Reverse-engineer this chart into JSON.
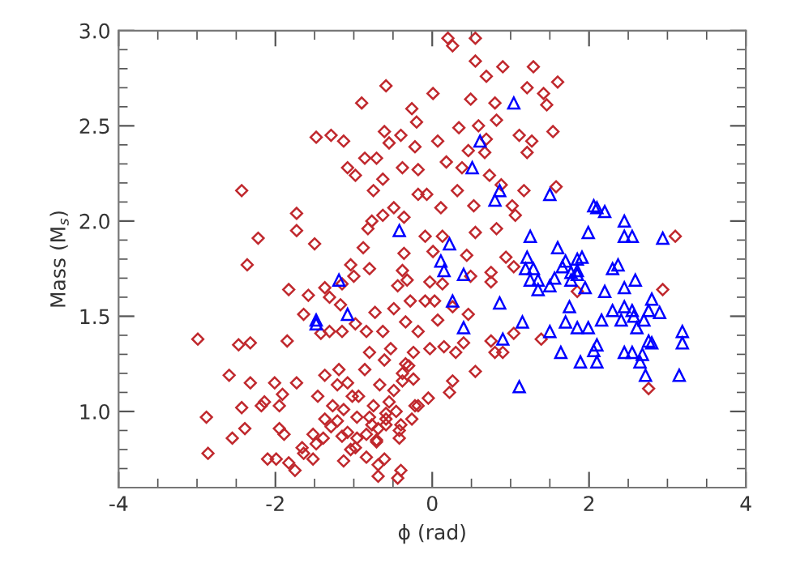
{
  "chart_data": {
    "type": "scatter",
    "xlabel": "ϕ (rad)",
    "ylabel": "Mass (M$_{s}$)",
    "xlim": [
      -4,
      4
    ],
    "ylim": [
      0.6,
      3.0
    ],
    "xticks": [
      -4,
      -2,
      0,
      2,
      4
    ],
    "yticks": [
      {
        "value": 1.0,
        "label": "1.0"
      },
      {
        "value": 1.5,
        "label": "1.5"
      },
      {
        "value": 2.0,
        "label": "2.0"
      },
      {
        "value": 2.5,
        "label": "2.5"
      },
      {
        "value": 3.0,
        "label": "3.0"
      }
    ],
    "grid": false,
    "legend": false,
    "series": [
      {
        "color": "#c0282d",
        "marker": "diamond",
        "x": [
          0.2,
          0.26,
          0.55,
          0.55,
          0.69,
          0.9,
          1.29,
          -0.59,
          0.01,
          0.49,
          1.21,
          1.42,
          1.46,
          1.6,
          0.8,
          0.82,
          -0.26,
          0.34,
          -0.2,
          -0.4,
          0.59,
          0.69,
          1.11,
          1.27,
          1.54,
          0.07,
          -0.22,
          0.46,
          0.67,
          1.21,
          -0.55,
          -0.71,
          -0.38,
          -0.63,
          0.18,
          0.38,
          -0.18,
          0.73,
          0.88,
          1.17,
          1.02,
          1.58,
          0.32,
          -0.07,
          -0.49,
          0.11,
          0.53,
          1.06,
          -2.43,
          -2.22,
          -1.73,
          -1.73,
          -1.5,
          -1.48,
          -1.29,
          -1.13,
          -0.9,
          -0.98,
          -0.86,
          -0.61,
          -1.08,
          -0.82,
          -0.77,
          -0.88,
          -0.75,
          -0.63,
          -0.18,
          -0.36,
          -2.36,
          -1.83,
          -1.17,
          -1.85,
          -2.99,
          -2.32,
          -2.47,
          -2.32,
          -2.59,
          -1.31,
          -1.15,
          -1.0,
          -1.58,
          -1.64,
          -1.37,
          -0.8,
          -0.44,
          -1.04,
          -1.31,
          -1.42,
          -2.01,
          -1.73,
          -1.95,
          -2.18,
          -1.95,
          -2.88,
          -2.39,
          -2.86,
          -2.55,
          -1.89,
          -1.99,
          -1.83,
          -2.1,
          -1.66,
          -1.48,
          -1.75,
          -1.64,
          -1.52,
          -1.39,
          -1.37,
          -1.46,
          -1.27,
          -1.37,
          -1.21,
          -1.08,
          -1.02,
          -0.94,
          -0.86,
          -0.96,
          -0.8,
          -0.75,
          -1.21,
          -1.13,
          -1.29,
          -1.15,
          -1.08,
          -0.96,
          -0.84,
          -0.69,
          -0.59,
          -0.55,
          -0.67,
          -0.49,
          -0.38,
          -0.34,
          -0.53,
          -0.63,
          -0.84,
          -0.98,
          -1.15,
          -0.73,
          -0.49,
          -0.28,
          -0.34,
          -0.18,
          -0.24,
          -0.3,
          -0.22,
          -0.26,
          -0.4,
          -0.42,
          -0.71,
          -0.84,
          -0.98,
          -0.69,
          -0.4,
          -0.77,
          -0.59,
          -0.46,
          -1.19,
          -0.8,
          -0.61,
          -1.91,
          -2.43,
          -2.14,
          -1.52,
          -1.13,
          -1.04,
          -0.61,
          -0.44,
          3.1,
          2.94,
          2.76,
          1.85,
          1.39,
          1.04,
          0.8,
          0.9,
          0.75,
          0.55,
          0.26,
          0.22,
          -0.05,
          -0.18,
          -0.24,
          -0.38,
          -0.42,
          -0.69,
          -0.71,
          -0.59,
          -0.03,
          0.15,
          0.3,
          0.4,
          0.46,
          0.26,
          0.07,
          0.03,
          -0.09,
          0.13,
          -0.03,
          -0.32,
          -0.38,
          -0.36,
          0.01,
          0.44,
          0.49,
          0.75,
          0.75,
          0.94,
          1.04,
          0.82,
          0.55,
          -0.09,
          0.13
        ],
        "values": [
          2.96,
          2.92,
          2.96,
          2.84,
          2.76,
          2.81,
          2.81,
          2.71,
          2.67,
          2.64,
          2.7,
          2.67,
          2.61,
          2.73,
          2.62,
          2.53,
          2.59,
          2.49,
          2.52,
          2.45,
          2.5,
          2.43,
          2.45,
          2.42,
          2.47,
          2.42,
          2.39,
          2.37,
          2.36,
          2.36,
          2.41,
          2.33,
          2.28,
          2.22,
          2.31,
          2.28,
          2.27,
          2.24,
          2.19,
          2.16,
          2.08,
          2.18,
          2.16,
          2.14,
          2.07,
          2.07,
          2.08,
          2.03,
          2.16,
          1.91,
          2.04,
          1.95,
          1.88,
          2.44,
          2.45,
          2.42,
          2.62,
          2.24,
          2.33,
          2.47,
          2.28,
          1.96,
          2.0,
          1.86,
          2.16,
          2.03,
          2.14,
          2.02,
          1.77,
          1.64,
          1.56,
          1.37,
          1.38,
          1.36,
          1.35,
          1.15,
          1.19,
          1.6,
          1.67,
          1.71,
          1.61,
          1.51,
          1.65,
          1.75,
          1.66,
          1.77,
          1.42,
          1.41,
          1.15,
          1.15,
          1.03,
          1.03,
          0.91,
          0.97,
          0.91,
          0.78,
          0.86,
          0.88,
          0.75,
          0.73,
          0.75,
          0.81,
          0.83,
          0.69,
          0.78,
          0.88,
          0.86,
          0.96,
          1.08,
          1.03,
          1.19,
          1.14,
          1.15,
          1.08,
          1.08,
          1.22,
          0.97,
          0.97,
          1.03,
          0.95,
          1.01,
          0.92,
          0.87,
          0.89,
          0.86,
          0.88,
          0.91,
          0.99,
          1.05,
          1.14,
          1.11,
          1.16,
          1.25,
          1.33,
          1.42,
          1.42,
          1.46,
          1.42,
          1.52,
          1.54,
          1.58,
          1.47,
          1.42,
          1.31,
          1.24,
          1.03,
          0.96,
          0.93,
          0.86,
          0.84,
          0.76,
          0.81,
          0.72,
          0.69,
          0.93,
          0.93,
          1.0,
          1.22,
          1.31,
          1.27,
          1.09,
          1.02,
          1.05,
          0.75,
          0.74,
          0.8,
          0.75,
          0.65,
          1.92,
          1.64,
          1.12,
          1.63,
          1.38,
          1.41,
          1.31,
          1.31,
          1.37,
          1.21,
          1.16,
          1.1,
          1.07,
          1.03,
          1.17,
          1.2,
          0.9,
          0.66,
          0.85,
          0.96,
          1.33,
          1.34,
          1.31,
          1.36,
          1.51,
          1.55,
          1.48,
          1.58,
          1.58,
          1.67,
          1.68,
          1.69,
          1.74,
          1.83,
          1.84,
          1.82,
          1.71,
          1.73,
          1.68,
          1.81,
          1.76,
          1.96,
          1.94,
          1.92,
          1.92
        ]
      },
      {
        "color": "#0000ff",
        "marker": "triangle",
        "x": [
          -0.42,
          1.25,
          1.99,
          2.45,
          2.55,
          2.94,
          0.22,
          0.11,
          0.15,
          0.4,
          1.21,
          1.29,
          1.19,
          1.25,
          1.35,
          1.35,
          1.6,
          1.66,
          1.7,
          1.56,
          1.5,
          1.77,
          1.85,
          1.91,
          1.85,
          1.85,
          1.77,
          1.95,
          2.2,
          2.37,
          2.3,
          2.45,
          2.59,
          2.8,
          2.9,
          2.76,
          2.55,
          2.57,
          2.45,
          2.41,
          2.3,
          2.16,
          2.61,
          2.7,
          1.75,
          1.7,
          1.85,
          1.99,
          1.5,
          1.15,
          0.9,
          0.86,
          0.4,
          2.76,
          2.8,
          3.19,
          3.19,
          2.1,
          2.06,
          1.64,
          1.89,
          2.1,
          2.45,
          2.55,
          2.68,
          2.65,
          2.72,
          3.15,
          1.11,
          0.26,
          1.04,
          0.61,
          0.51,
          0.86,
          0.8,
          1.5,
          2.06,
          2.1,
          2.2,
          2.45,
          -1.19,
          -1.08,
          -1.48,
          -1.48
        ],
        "values": [
          1.95,
          1.92,
          1.94,
          1.92,
          1.92,
          1.91,
          1.88,
          1.79,
          1.74,
          1.72,
          1.81,
          1.75,
          1.75,
          1.69,
          1.69,
          1.64,
          1.86,
          1.76,
          1.79,
          1.7,
          1.66,
          1.73,
          1.8,
          1.81,
          1.74,
          1.72,
          1.69,
          1.65,
          1.63,
          1.77,
          1.75,
          1.65,
          1.69,
          1.59,
          1.52,
          1.53,
          1.53,
          1.5,
          1.55,
          1.48,
          1.53,
          1.48,
          1.44,
          1.48,
          1.55,
          1.47,
          1.44,
          1.44,
          1.42,
          1.47,
          1.38,
          1.57,
          1.44,
          1.37,
          1.36,
          1.42,
          1.36,
          1.35,
          1.32,
          1.31,
          1.26,
          1.26,
          1.31,
          1.31,
          1.3,
          1.26,
          1.19,
          1.19,
          1.13,
          1.58,
          2.62,
          2.42,
          2.28,
          2.16,
          2.11,
          2.14,
          2.08,
          2.07,
          2.05,
          2.0,
          1.69,
          1.51,
          1.48,
          1.46
        ]
      }
    ]
  }
}
